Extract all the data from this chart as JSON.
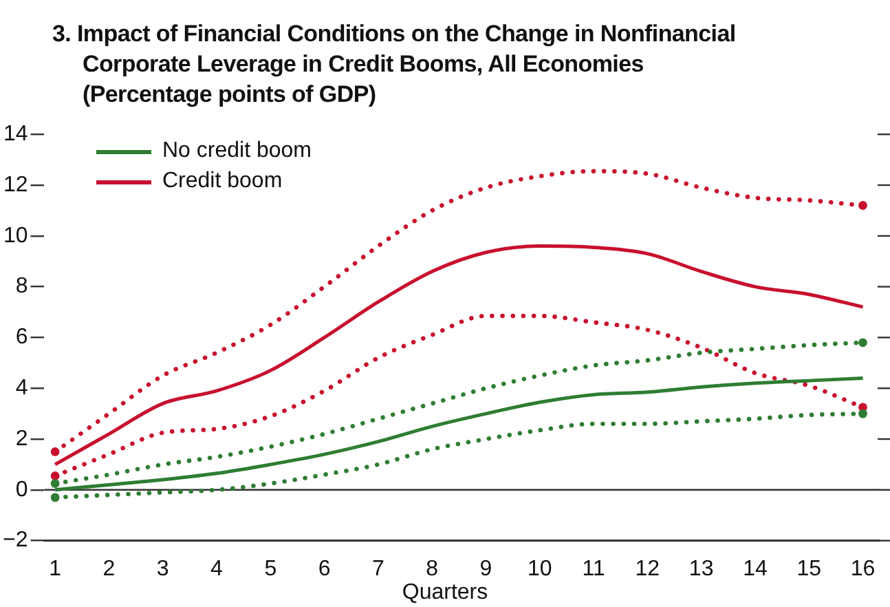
{
  "chart_data": {
    "type": "line",
    "title": "3. Impact of Financial Conditions on the Change in Nonfinancial Corporate Leverage in Credit Booms, All Economies",
    "subtitle": "(Percentage points of GDP)",
    "xlabel": "Quarters",
    "x": [
      1,
      2,
      3,
      4,
      5,
      6,
      7,
      8,
      9,
      10,
      11,
      12,
      13,
      14,
      15,
      16
    ],
    "series": [
      {
        "name": "No credit boom",
        "color": "#2e7d32",
        "line_style": "solid",
        "values": [
          0.0,
          0.2,
          0.4,
          0.65,
          1.0,
          1.4,
          1.9,
          2.5,
          3.0,
          3.45,
          3.75,
          3.85,
          4.05,
          4.2,
          4.3,
          4.4
        ]
      },
      {
        "name": "Credit boom",
        "color": "#c8102e",
        "line_style": "solid",
        "values": [
          1.0,
          2.2,
          3.4,
          3.9,
          4.7,
          6.0,
          7.4,
          8.6,
          9.35,
          9.6,
          9.55,
          9.3,
          8.6,
          8.0,
          7.7,
          7.2
        ]
      },
      {
        "color": "#2e7d32",
        "line_style": "dotted",
        "values": [
          0.25,
          0.6,
          1.0,
          1.3,
          1.7,
          2.2,
          2.8,
          3.4,
          4.0,
          4.5,
          4.9,
          5.1,
          5.4,
          5.55,
          5.7,
          5.8
        ]
      },
      {
        "color": "#2e7d32",
        "line_style": "dotted",
        "values": [
          -0.3,
          -0.2,
          -0.1,
          0.0,
          0.25,
          0.6,
          1.0,
          1.6,
          2.0,
          2.35,
          2.6,
          2.6,
          2.7,
          2.8,
          2.95,
          3.0
        ]
      },
      {
        "color": "#c8102e",
        "line_style": "dotted",
        "values": [
          1.5,
          3.0,
          4.5,
          5.4,
          6.5,
          8.0,
          9.6,
          11.0,
          11.9,
          12.35,
          12.55,
          12.45,
          11.9,
          11.5,
          11.4,
          11.2
        ]
      },
      {
        "color": "#c8102e",
        "line_style": "dotted",
        "values": [
          0.55,
          1.4,
          2.25,
          2.4,
          2.9,
          3.9,
          5.2,
          6.1,
          6.85,
          6.85,
          6.6,
          6.3,
          5.6,
          4.6,
          4.1,
          3.25
        ]
      }
    ],
    "xlim": [
      0.8,
      16.3
    ],
    "xticks": [
      1,
      2,
      3,
      4,
      5,
      6,
      7,
      8,
      9,
      10,
      11,
      12,
      13,
      14,
      15,
      16
    ],
    "ylim": [
      -2,
      14
    ],
    "yticks": [
      {
        "value": -2,
        "label": "−2"
      },
      0,
      2,
      4,
      6,
      8,
      10,
      12,
      14
    ],
    "ref_lines": [
      {
        "axis": "y",
        "value": 0,
        "color": "#333333"
      }
    ],
    "grid": false,
    "legend": "top left",
    "marker": "none"
  }
}
